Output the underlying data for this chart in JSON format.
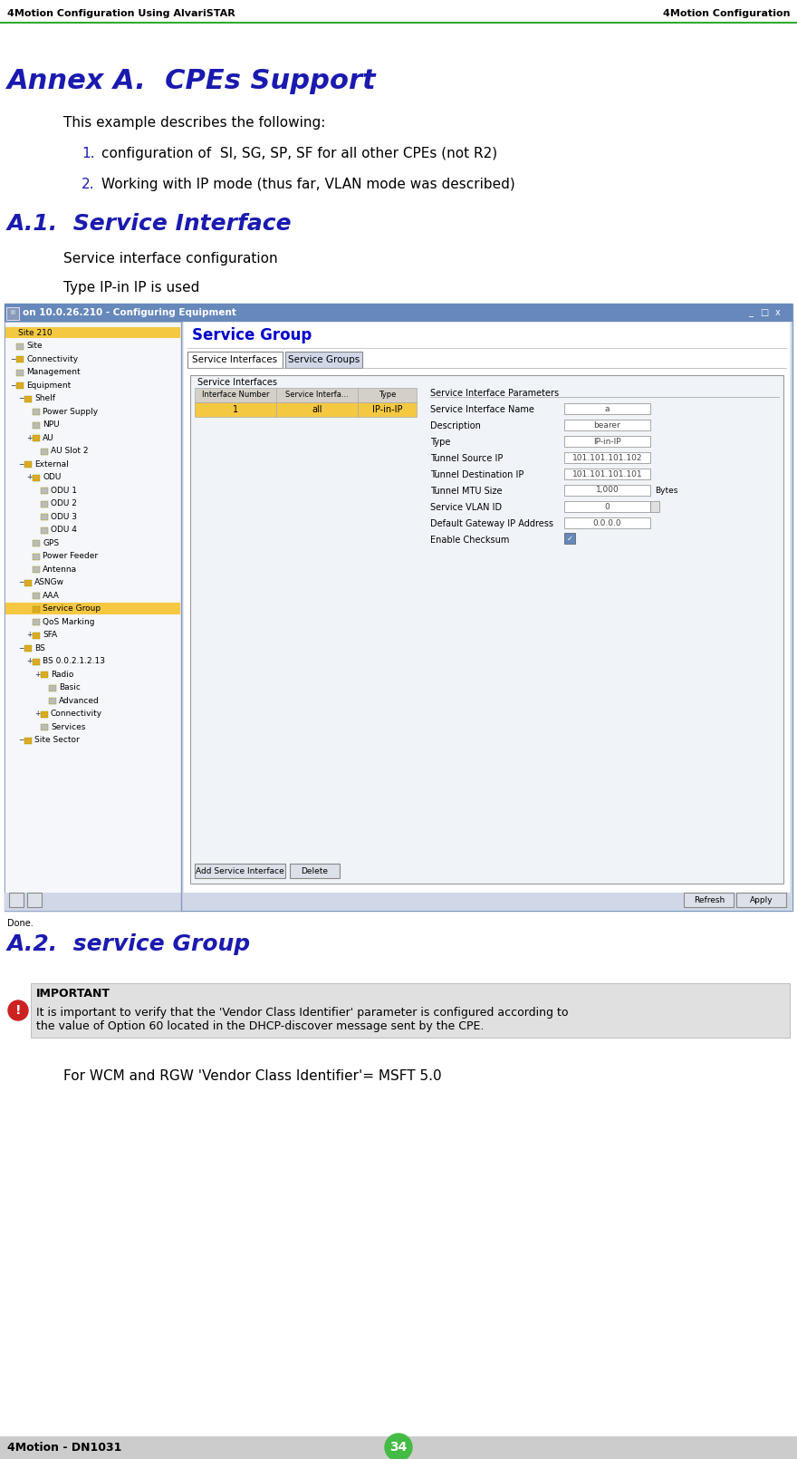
{
  "header_left": "4Motion Configuration Using AlvariSTAR",
  "header_right": "4Motion Configuration",
  "header_line_color": "#33aa33",
  "footer_left": "4Motion - DN1031",
  "footer_page": "34",
  "footer_bg": "#cccccc",
  "footer_circle_color": "#44bb44",
  "title_annex": "Annex A.  CPEs Support",
  "title_color": "#1a1ab0",
  "intro_text": "This example describes the following:",
  "list_items": [
    "configuration of  SI, SG, SP, SF for all other CPEs (not R2)",
    "Working with IP mode (thus far, VLAN mode was described)"
  ],
  "list_numbers": [
    "1.",
    "2."
  ],
  "list_number_color": "#1a1ab0",
  "section_a1": "A.1.  Service Interface",
  "section_a1_color": "#1a1ab0",
  "section_a1_text1": "Service interface configuration",
  "section_a1_text2": "Type IP-in IP is used",
  "section_a2": "A.2.  service Group",
  "section_a2_color": "#1a1ab0",
  "important_label": "IMPORTANT",
  "important_bg": "#e0e0e0",
  "important_bar_color": "#cc2222",
  "important_text1": "It is important to verify that the 'Vendor Class Identifier' parameter is configured according to",
  "important_text2": "the value of Option 60 located in the DHCP-discover message sent by the CPE.",
  "wcm_text": "For WCM and RGW 'Vendor Class Identifier'= MSFT 5.0",
  "bg_color": "#ffffff",
  "text_color": "#000000",
  "ss_title_bar_color": "#6688bb",
  "ss_bg_color": "#dce6f0",
  "ss_panel_bg": "#f0f4f8",
  "ss_right_bg": "#e8eef5",
  "tree_select_color": "#f5c842",
  "tab_active_color": "#ffffff",
  "tab_inactive_color": "#d0d8e8"
}
